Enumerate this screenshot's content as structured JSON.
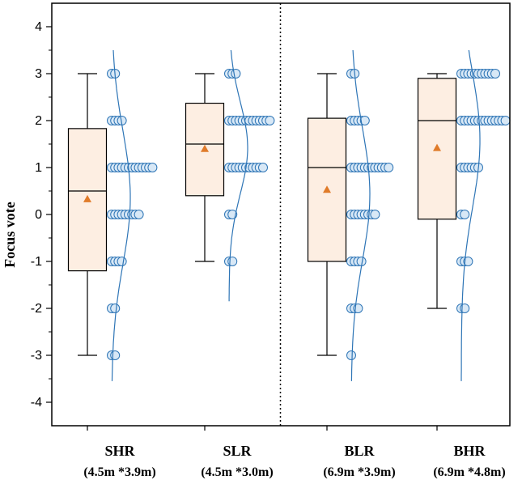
{
  "chart_data": {
    "type": "box",
    "ylabel": "Focus vote",
    "ylim": [
      -4.5,
      4.5
    ],
    "yticks": [
      -4,
      -3,
      -2,
      -1,
      0,
      1,
      2,
      3,
      4
    ],
    "categories": [
      {
        "name": "SHR",
        "sub": "(4.5m *3.9m)"
      },
      {
        "name": "SLR",
        "sub": "(4.5m *3.0m)"
      },
      {
        "name": "BLR",
        "sub": "(6.9m *3.9m)"
      },
      {
        "name": "BHR",
        "sub": "(6.9m *4.8m)"
      }
    ],
    "boxes": [
      {
        "min": -3,
        "q1": -1.2,
        "median": 0.5,
        "q3": 1.83,
        "max": 3,
        "mean": 0.33
      },
      {
        "min": -1,
        "q1": 0.4,
        "median": 1.5,
        "q3": 2.37,
        "max": 3,
        "mean": 1.4
      },
      {
        "min": -3,
        "q1": -1,
        "median": 1,
        "q3": 2.05,
        "max": 3,
        "mean": 0.53
      },
      {
        "min": -2,
        "q1": -0.1,
        "median": 2,
        "q3": 2.9,
        "max": 3,
        "mean": 1.42
      }
    ],
    "points": [
      [
        {
          "v": 3,
          "n": 2
        },
        {
          "v": 2,
          "n": 4
        },
        {
          "v": 1,
          "n": 13
        },
        {
          "v": 0,
          "n": 9
        },
        {
          "v": -1,
          "n": 4
        },
        {
          "v": -2,
          "n": 2
        },
        {
          "v": -3,
          "n": 2
        }
      ],
      [
        {
          "v": 3,
          "n": 3
        },
        {
          "v": 2,
          "n": 13
        },
        {
          "v": 1,
          "n": 11
        },
        {
          "v": 0,
          "n": 2
        },
        {
          "v": -1,
          "n": 2
        }
      ],
      [
        {
          "v": 3,
          "n": 2
        },
        {
          "v": 2,
          "n": 5
        },
        {
          "v": 1,
          "n": 12
        },
        {
          "v": 0,
          "n": 8
        },
        {
          "v": -1,
          "n": 4
        },
        {
          "v": -2,
          "n": 3
        },
        {
          "v": -3,
          "n": 1
        }
      ],
      [
        {
          "v": 3,
          "n": 11
        },
        {
          "v": 2,
          "n": 14
        },
        {
          "v": 1,
          "n": 6
        },
        {
          "v": 0,
          "n": 2
        },
        {
          "v": -1,
          "n": 3
        },
        {
          "v": -2,
          "n": 2
        }
      ]
    ],
    "divider_after_category": 1,
    "colors": {
      "box_fill": "#fdeee2",
      "box_stroke": "#000000",
      "mean_marker": "#e07b2a",
      "point_fill": "#d8e8f6",
      "point_stroke": "#2e75b6",
      "curve": "#2e75b6"
    }
  }
}
